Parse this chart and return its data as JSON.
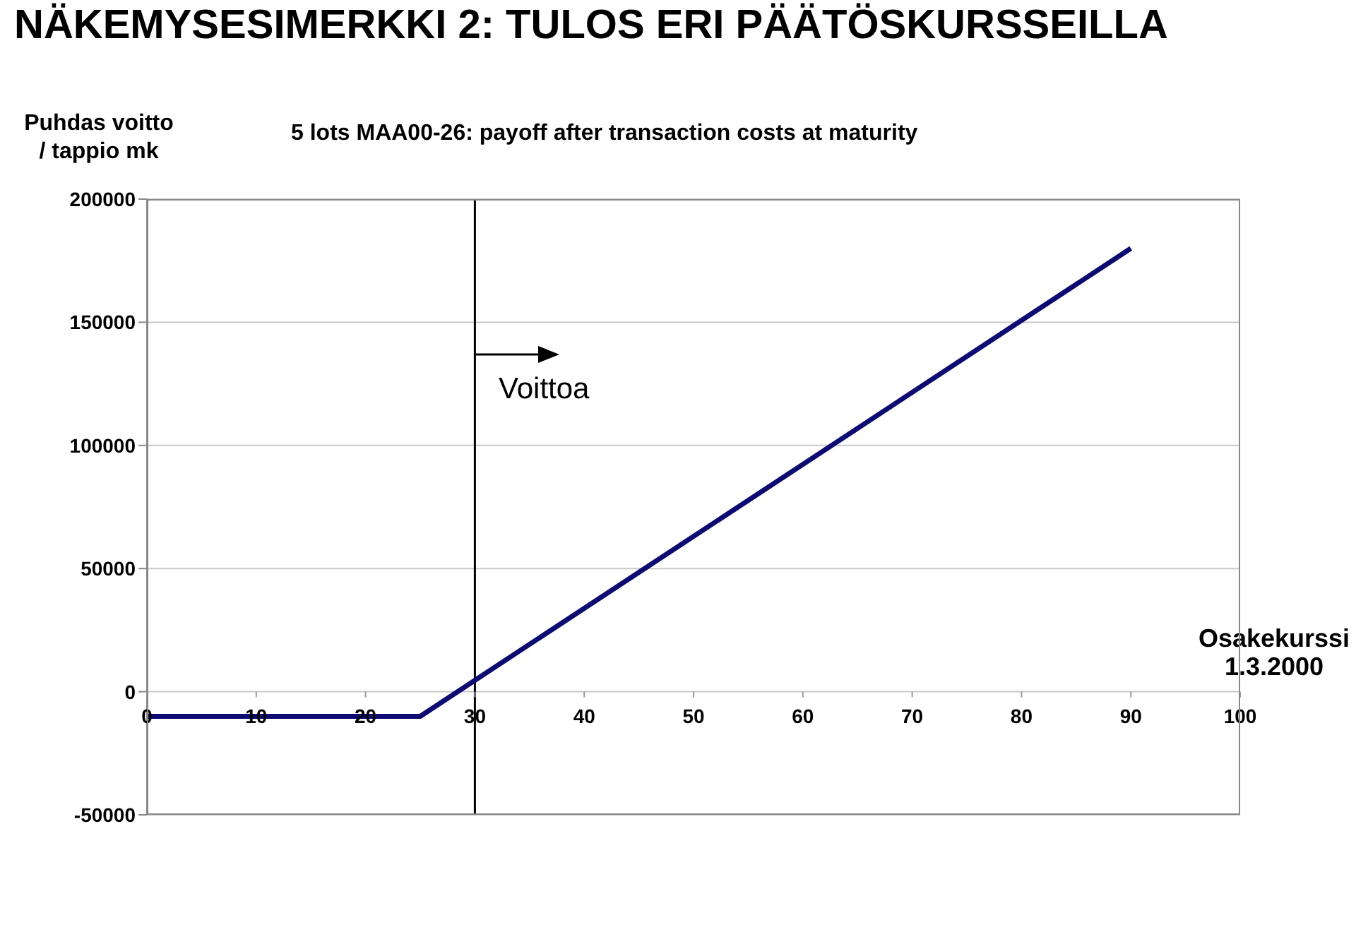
{
  "chart_data": {
    "type": "line",
    "title": "NÄKEMYSESIMERKKI 2: TULOS ERI PÄÄTÖSKURSSEILLA",
    "subtitle": "5 lots MAA00-26: payoff after transaction costs at maturity",
    "ylabel": "Puhdas voitto / tappio mk",
    "xlabel": "Osakekurssi 1.3.2000",
    "x": [
      0,
      25,
      90
    ],
    "series": [
      {
        "color": "#0b0b73",
        "values": [
          -10000,
          -10000,
          180000
        ]
      }
    ],
    "xlim": [
      0,
      100
    ],
    "xticks": [
      0,
      10,
      20,
      30,
      40,
      50,
      60,
      70,
      80,
      90,
      100
    ],
    "ylim": [
      -50000,
      200000
    ],
    "yticks": [
      -50000,
      0,
      50000,
      100000,
      150000,
      200000
    ],
    "grid": "y",
    "marker": "none",
    "line_style": "solid",
    "ref_lines": [
      {
        "axis": "x",
        "value": 30,
        "color": "#000000"
      }
    ],
    "annotations": [
      "Voittoa"
    ]
  }
}
